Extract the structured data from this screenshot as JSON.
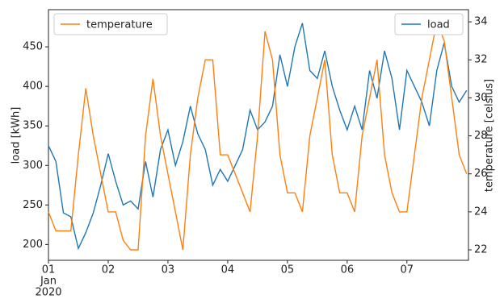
{
  "chart_data": {
    "type": "line",
    "x": [
      1.0,
      1.125,
      1.25,
      1.375,
      1.5,
      1.625,
      1.75,
      1.875,
      2.0,
      2.125,
      2.25,
      2.375,
      2.5,
      2.625,
      2.75,
      2.875,
      3.0,
      3.125,
      3.25,
      3.375,
      3.5,
      3.625,
      3.75,
      3.875,
      4.0,
      4.125,
      4.25,
      4.375,
      4.5,
      4.625,
      4.75,
      4.875,
      5.0,
      5.125,
      5.25,
      5.375,
      5.5,
      5.625,
      5.75,
      5.875,
      6.0,
      6.125,
      6.25,
      6.375,
      6.5,
      6.625,
      6.75,
      6.875,
      7.0,
      7.125,
      7.25,
      7.375,
      7.5,
      7.625,
      7.75,
      7.875,
      8.0
    ],
    "x_sublabels": [
      "Jan",
      "2020"
    ],
    "xlim": [
      1,
      8.03
    ],
    "xticks": [
      {
        "value": 1,
        "label": "01"
      },
      {
        "value": 2,
        "label": "02"
      },
      {
        "value": 3,
        "label": "03"
      },
      {
        "value": 4,
        "label": "04"
      },
      {
        "value": 5,
        "label": "05"
      },
      {
        "value": 6,
        "label": "06"
      },
      {
        "value": 7,
        "label": "07"
      }
    ],
    "y_label": "load [kWh]",
    "y2_label": "temperature [celsius]",
    "ylim": [
      180,
      497
    ],
    "yticks": [
      200,
      250,
      300,
      350,
      400,
      450
    ],
    "y2lim": [
      21.45,
      34.64
    ],
    "y2ticks": [
      22,
      24,
      26,
      28,
      30,
      32,
      34
    ],
    "grid": false,
    "series": [
      {
        "name": "load",
        "color": "#1f77b4",
        "axis": "y",
        "legend": "upper right",
        "values": [
          325,
          305,
          240,
          235,
          195,
          215,
          240,
          275,
          315,
          280,
          250,
          255,
          245,
          305,
          260,
          320,
          345,
          300,
          330,
          375,
          340,
          320,
          275,
          295,
          280,
          300,
          320,
          370,
          345,
          355,
          375,
          440,
          400,
          450,
          480,
          420,
          410,
          445,
          400,
          370,
          345,
          375,
          345,
          420,
          385,
          445,
          410,
          345,
          420,
          400,
          380,
          350,
          420,
          455,
          400,
          380,
          395
        ]
      },
      {
        "name": "temperature",
        "color": "#ff7f0e",
        "axis": "y2",
        "legend": "upper left",
        "values": [
          24,
          23,
          23,
          23,
          27,
          30.5,
          28,
          26,
          24,
          24,
          22.5,
          22,
          22,
          28,
          31,
          28,
          26,
          24,
          22,
          27,
          30,
          32,
          32,
          27,
          27,
          26,
          25,
          24,
          28,
          33.5,
          32,
          27,
          25,
          25,
          24,
          28,
          30,
          32,
          27,
          25,
          25,
          24,
          28,
          30,
          32,
          27,
          25,
          24,
          24,
          27,
          30,
          32,
          34,
          33,
          30,
          27,
          26
        ]
      }
    ]
  }
}
